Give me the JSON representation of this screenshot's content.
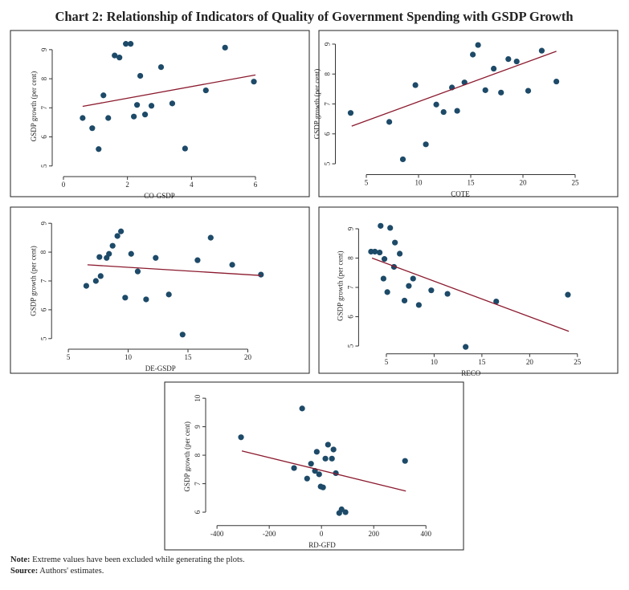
{
  "title": "Chart 2: Relationship of Indicators of Quality of Government Spending with GSDP Growth",
  "chart_data": [
    {
      "type": "scatter",
      "xlabel": "CO-GSDP",
      "ylabel": "GSDP growth (per cent)",
      "color": "#1d4a68",
      "x": [
        0.6,
        0.9,
        1.1,
        1.25,
        1.4,
        1.6,
        1.75,
        1.95,
        2.1,
        2.2,
        2.3,
        2.4,
        2.55,
        2.75,
        3.05,
        3.4,
        3.8,
        4.45,
        5.05,
        5.95
      ],
      "values": [
        6.65,
        6.3,
        5.58,
        7.43,
        6.65,
        8.8,
        8.73,
        9.2,
        9.2,
        6.7,
        7.1,
        8.1,
        6.77,
        7.07,
        8.4,
        7.15,
        5.6,
        7.6,
        9.07,
        7.9
      ],
      "xlim": [
        -0.2,
        6.2
      ],
      "ylim": [
        4.8,
        9.3
      ],
      "xticks": [
        0,
        2,
        4,
        6
      ],
      "yticks": [
        5,
        6,
        7,
        8,
        9
      ],
      "trendline": {
        "x": [
          0.6,
          6
        ],
        "y": [
          7.05,
          8.13
        ],
        "color": "#8b1a2e"
      }
    },
    {
      "type": "scatter",
      "xlabel": "COTE",
      "ylabel": "GSDP growth (per cent)",
      "color": "#1d4a68",
      "x": [
        3.5,
        7.2,
        8.5,
        9.7,
        10.7,
        11.7,
        12.4,
        13.2,
        13.7,
        14.4,
        15.2,
        15.7,
        16.4,
        17.2,
        17.9,
        18.6,
        19.4,
        20.5,
        21.8,
        23.2
      ],
      "values": [
        6.7,
        6.4,
        5.15,
        7.63,
        5.65,
        6.98,
        6.73,
        7.55,
        6.77,
        7.72,
        8.65,
        8.97,
        7.46,
        8.18,
        7.38,
        8.5,
        8.42,
        7.44,
        8.78,
        7.75
      ],
      "xlim": [
        2.5,
        25.5
      ],
      "ylim": [
        4.8,
        9.2
      ],
      "xticks": [
        5,
        10,
        15,
        20,
        25
      ],
      "yticks": [
        5,
        6,
        7,
        8,
        9
      ],
      "trendline": {
        "x": [
          3.6,
          23.2
        ],
        "y": [
          6.26,
          8.76
        ],
        "color": "#8b1a2e"
      }
    },
    {
      "type": "scatter",
      "xlabel": "DE-GSDP",
      "ylabel": "GSDP growth (per cent)",
      "color": "#1d4a68",
      "x": [
        6.5,
        7.3,
        7.6,
        7.7,
        8.2,
        8.4,
        8.7,
        9.1,
        9.4,
        9.75,
        10.25,
        10.8,
        11.5,
        12.3,
        13.4,
        14.55,
        15.8,
        16.9,
        18.7,
        21.1
      ],
      "values": [
        6.83,
        7.0,
        7.83,
        7.17,
        7.8,
        7.94,
        8.22,
        8.56,
        8.72,
        6.42,
        7.94,
        7.33,
        6.36,
        7.8,
        6.53,
        5.14,
        7.72,
        8.5,
        7.56,
        7.22
      ],
      "xlim": [
        4,
        21.4
      ],
      "ylim": [
        4.8,
        9.2
      ],
      "xticks": [
        5,
        10,
        15,
        20
      ],
      "yticks": [
        5,
        6,
        7,
        8,
        9
      ],
      "trendline": {
        "x": [
          6.6,
          21.1
        ],
        "y": [
          7.56,
          7.19
        ],
        "color": "#8b1a2e"
      }
    },
    {
      "type": "scatter",
      "xlabel": "RECO",
      "ylabel": "GSDP growth (per cent)",
      "color": "#1d4a68",
      "x": [
        3.4,
        3.8,
        4.3,
        4.4,
        4.7,
        4.8,
        5.1,
        5.4,
        5.8,
        5.9,
        6.4,
        6.9,
        7.35,
        7.8,
        8.4,
        9.7,
        11.4,
        13.3,
        16.5,
        24
      ],
      "values": [
        8.22,
        8.22,
        8.19,
        9.1,
        7.3,
        7.97,
        6.84,
        9.03,
        7.7,
        8.53,
        8.15,
        6.55,
        7.05,
        7.3,
        6.4,
        6.9,
        6.78,
        4.97,
        6.52,
        6.75
      ],
      "xlim": [
        2.6,
        25.1
      ],
      "ylim": [
        4.9,
        9.2
      ],
      "xticks": [
        5,
        10,
        15,
        20,
        25
      ],
      "yticks": [
        5,
        6,
        7,
        8,
        9
      ],
      "trendline": {
        "x": [
          3.5,
          24.1
        ],
        "y": [
          8.0,
          5.5
        ],
        "color": "#8b1a2e"
      }
    },
    {
      "type": "scatter",
      "xlabel": "RD-GFD",
      "ylabel": "GSDP growth (per cent)",
      "color": "#1d4a68",
      "x": [
        -308,
        -105,
        -74,
        -55,
        -40,
        -25,
        -18,
        -9,
        -3,
        6,
        15,
        25,
        40,
        46,
        55,
        68,
        77,
        92,
        320
      ],
      "values": [
        8.63,
        7.55,
        9.64,
        7.18,
        7.7,
        7.45,
        8.12,
        7.33,
        6.9,
        6.87,
        7.88,
        8.37,
        7.88,
        8.2,
        7.37,
        5.97,
        6.1,
        6.0,
        7.8
      ],
      "xlim": [
        -425,
        430
      ],
      "ylim": [
        5.7,
        10.2
      ],
      "xticks": [
        -400,
        -200,
        0,
        200,
        400
      ],
      "yticks": [
        6,
        7,
        8,
        9,
        10
      ],
      "trendline": {
        "x": [
          -305,
          323
        ],
        "y": [
          8.15,
          6.74
        ],
        "color": "#8b1a2e"
      }
    }
  ],
  "note": {
    "label": "Note:",
    "text": "Extreme values have been excluded while generating the plots."
  },
  "source": {
    "label": "Source:",
    "text": "Authors' estimates."
  }
}
